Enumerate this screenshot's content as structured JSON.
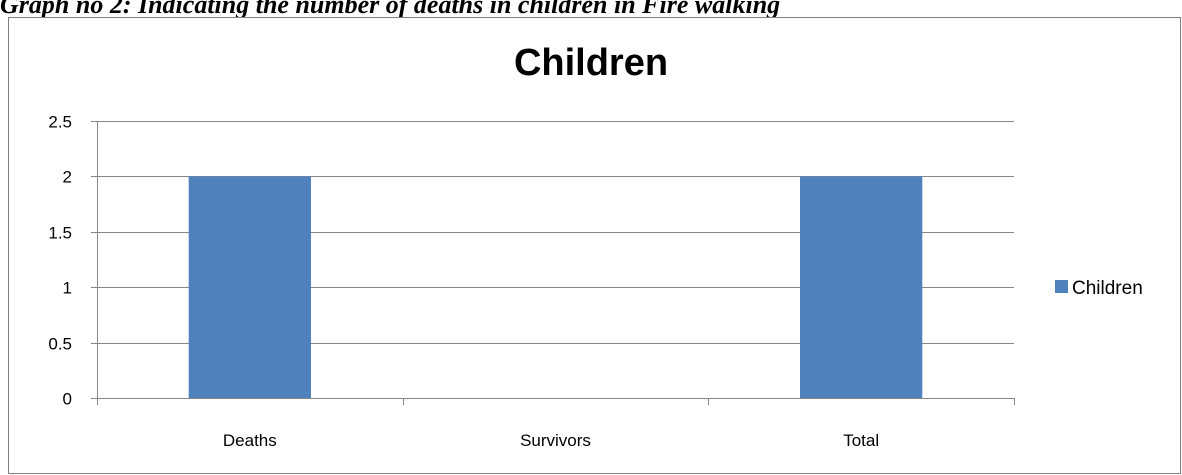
{
  "caption": "Graph no 2: Indicating the number of deaths in children in Fire walking",
  "chart_data": {
    "type": "bar",
    "title": "Children",
    "categories": [
      "Deaths",
      "Survivors",
      "Total"
    ],
    "series": [
      {
        "name": "Children",
        "values": [
          2,
          0,
          2
        ],
        "color": "#4f81bd"
      }
    ],
    "ylim": [
      0,
      2.5
    ],
    "yticks": [
      0,
      0.5,
      1,
      1.5,
      2,
      2.5
    ],
    "ytick_labels": [
      "0",
      "0.5",
      "1",
      "1.5",
      "2",
      "2.5"
    ],
    "grid": true,
    "legend_position": "right",
    "xlabel": "",
    "ylabel": ""
  }
}
